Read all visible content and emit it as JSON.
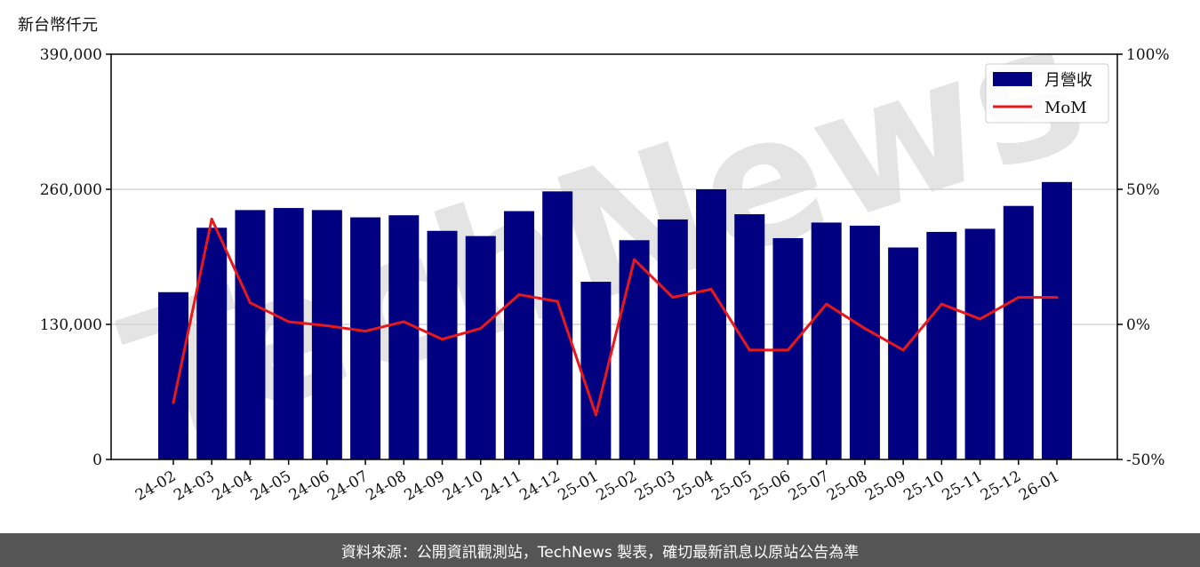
{
  "unit_label": "新台幣仟元",
  "footer_text": "資料來源：公開資訊觀測站，TechNews 製表，確切最新訊息以原站公告為準",
  "watermark_text": "TechNews",
  "colors": {
    "bar": "#000080",
    "line": "#e8181b",
    "grid": "#d3d3d3",
    "footer_bg": "#555555"
  },
  "chart_data": {
    "type": "bar",
    "categories": [
      "24-02",
      "24-03",
      "24-04",
      "24-05",
      "24-06",
      "24-07",
      "24-08",
      "24-09",
      "24-10",
      "24-11",
      "24-12",
      "25-01",
      "25-02",
      "25-03",
      "25-04",
      "25-05",
      "25-06",
      "25-07",
      "25-08",
      "25-09",
      "25-10",
      "25-11",
      "25-12",
      "26-01"
    ],
    "series": [
      {
        "name": "月營收",
        "type": "bar",
        "axis": "left",
        "values": [
          161000,
          223000,
          240000,
          242000,
          240000,
          233000,
          235000,
          220000,
          215000,
          239000,
          258000,
          171000,
          211000,
          231000,
          260000,
          236000,
          213000,
          228000,
          225000,
          204000,
          219000,
          222000,
          244000,
          267000
        ]
      },
      {
        "name": "MoM",
        "type": "line",
        "axis": "right",
        "values": [
          -29,
          39,
          8,
          1,
          -0.5,
          -2.5,
          1,
          -5.5,
          -1.5,
          11,
          8.5,
          -33.5,
          24,
          10,
          13,
          -9.5,
          -9.5,
          7.5,
          -1.5,
          -9.5,
          7.5,
          2,
          10,
          10
        ]
      }
    ],
    "ylim_left": [
      0,
      390000
    ],
    "yticks_left": [
      "0",
      "130,000",
      "260,000",
      "390,000"
    ],
    "ylim_right": [
      -50,
      100
    ],
    "yticks_right": [
      "-50%",
      "0%",
      "50%",
      "100%"
    ],
    "grid": "horizontal",
    "legend": {
      "position": "top-right",
      "items": [
        "月營收",
        "MoM"
      ]
    }
  }
}
